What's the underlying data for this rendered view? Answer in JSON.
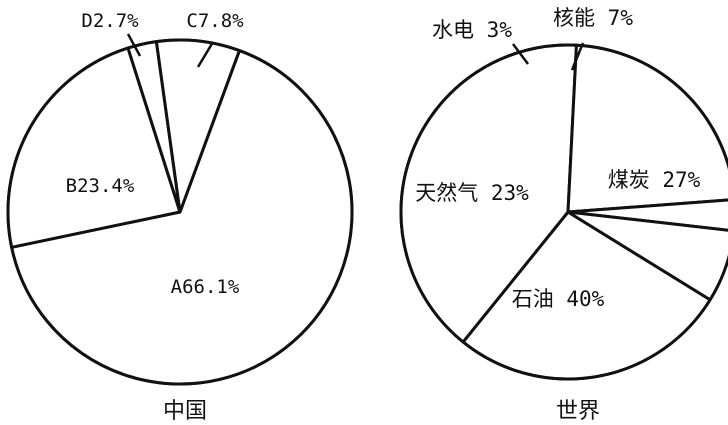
{
  "chart_data": [
    {
      "type": "pie",
      "caption": "中国",
      "slices": [
        {
          "label": "A66.1%",
          "value": 66.1
        },
        {
          "label": "B23.4%",
          "value": 23.4
        },
        {
          "label": "D2.7%",
          "value": 2.7
        },
        {
          "label": "C7.8%",
          "value": 7.8
        }
      ]
    },
    {
      "type": "pie",
      "caption": "世界",
      "slices": [
        {
          "label": "煤炭 27%",
          "value": 27
        },
        {
          "label": "石油 40%",
          "value": 40
        },
        {
          "label": "天然气 23%",
          "value": 23
        },
        {
          "label": "水电 3%",
          "value": 3
        },
        {
          "label": "核能 7%",
          "value": 7
        }
      ]
    }
  ]
}
